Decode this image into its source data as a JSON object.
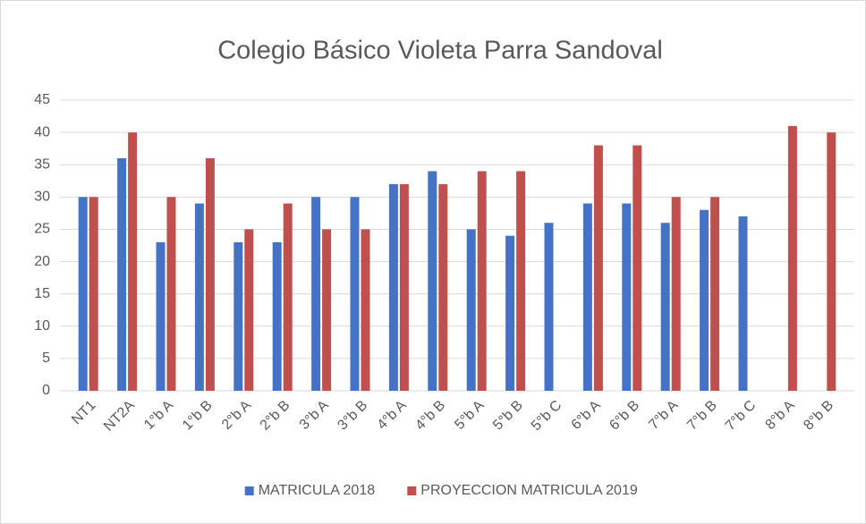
{
  "chart_data": {
    "type": "bar",
    "title": "Colegio Básico Violeta Parra Sandoval",
    "categories": [
      "NT1",
      "NT2A",
      "1°b A",
      "1°b B",
      "2°b A",
      "2°b B",
      "3°b A",
      "3°b B",
      "4°b A",
      "4°b B",
      "5°b A",
      "5°b B",
      "5°b C",
      "6°b A",
      "6°b B",
      "7°b A",
      "7°b B",
      "7°b C",
      "8°b A",
      "8°b B"
    ],
    "series": [
      {
        "name": "MATRICULA 2018",
        "color": "#4472c4",
        "values": [
          30,
          36,
          23,
          29,
          23,
          23,
          30,
          30,
          32,
          34,
          25,
          24,
          26,
          29,
          29,
          26,
          28,
          27,
          null,
          null
        ]
      },
      {
        "name": "PROYECCION MATRICULA 2019",
        "color": "#c0504d",
        "values": [
          30,
          40,
          30,
          36,
          25,
          29,
          25,
          25,
          32,
          32,
          34,
          34,
          null,
          38,
          38,
          30,
          30,
          null,
          41,
          40
        ]
      }
    ],
    "ylim": [
      0,
      45
    ],
    "yticks": [
      0,
      5,
      10,
      15,
      20,
      25,
      30,
      35,
      40,
      45
    ],
    "grid": true,
    "legend": "bottom"
  }
}
